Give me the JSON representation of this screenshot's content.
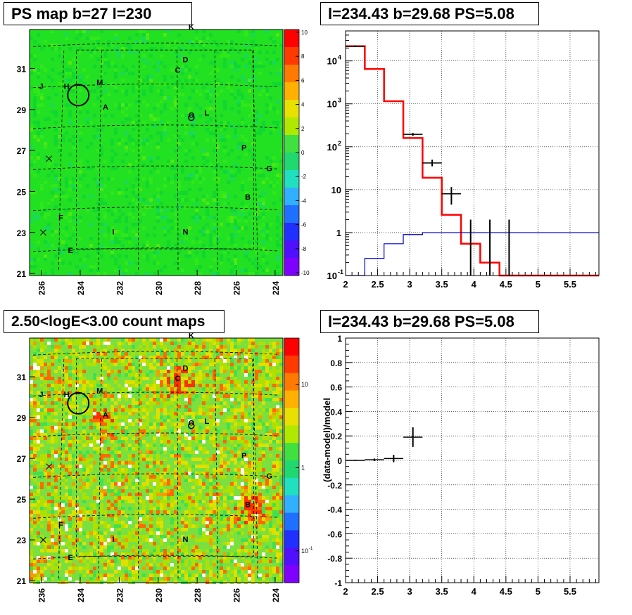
{
  "panels": {
    "ps_map": {
      "title": "PS map b=27 l=230",
      "xlabel": "",
      "ylabel": "",
      "x_ticks": [
        "236",
        "234",
        "232",
        "230",
        "228",
        "226",
        "224"
      ],
      "y_ticks": [
        "31",
        "29",
        "27",
        "25",
        "23",
        "21"
      ],
      "colorbar_ticks": [
        "10",
        "8",
        "6",
        "4",
        "2",
        "0",
        "-2",
        "-4",
        "-6",
        "-8",
        "-10"
      ],
      "colorbar_range": [
        -10,
        10
      ]
    },
    "spectrum": {
      "title": "l=234.43 b=29.68 PS=5.08",
      "x_ticks": [
        "2",
        "2.5",
        "3",
        "3.5",
        "4",
        "4.5",
        "5",
        "5.5"
      ],
      "y_ticks": [
        "10^-1",
        "1",
        "10",
        "10^2",
        "10^3",
        "10^4"
      ]
    },
    "count_map": {
      "title": "2.50<logE<3.00 count maps",
      "x_ticks": [
        "236",
        "234",
        "232",
        "230",
        "228",
        "226",
        "224"
      ],
      "y_ticks": [
        "31",
        "29",
        "27",
        "25",
        "23",
        "21"
      ],
      "colorbar_ticks": [
        "10",
        "1",
        "10^-1"
      ]
    },
    "residual": {
      "title": "l=234.43 b=29.68 PS=5.08",
      "ylabel": "(data-model)/model",
      "x_ticks": [
        "2",
        "2.5",
        "3",
        "3.5",
        "4",
        "4.5",
        "5",
        "5.5"
      ],
      "y_ticks": [
        "1",
        "0.8",
        "0.6",
        "0.4",
        "0.2",
        "0",
        "-0.2",
        "-0.4",
        "-0.6",
        "-0.8",
        "-1"
      ]
    }
  },
  "map_sources": {
    "letters": [
      "K",
      "D",
      "C",
      "J",
      "H",
      "M",
      "A",
      "O",
      "L",
      "P",
      "G",
      "B",
      "F",
      "I",
      "N",
      "E"
    ],
    "values": {
      "K": [
        228.3,
        32.9
      ],
      "D": [
        228.6,
        31.3
      ],
      "C": [
        229.0,
        30.8
      ],
      "J": [
        236.0,
        30.0
      ],
      "H": [
        234.7,
        30.0
      ],
      "M": [
        233.0,
        30.2
      ],
      "A": [
        232.7,
        29.0
      ],
      "O": [
        228.3,
        28.6
      ],
      "L": [
        227.5,
        28.7
      ],
      "P": [
        225.6,
        27.0
      ],
      "G": [
        224.3,
        26.0
      ],
      "B": [
        225.4,
        24.6
      ],
      "F": [
        235.0,
        23.6
      ],
      "I": [
        232.3,
        22.9
      ],
      "N": [
        228.6,
        22.9
      ],
      "E": [
        234.5,
        22.0
      ]
    },
    "circle_center": [
      234.1,
      29.7
    ],
    "crosses": [
      [
        235.6,
        26.6
      ],
      [
        235.9,
        23.0
      ]
    ],
    "count_hotspots": [
      [
        232.7,
        29.0
      ],
      [
        229.0,
        30.8
      ],
      [
        225.4,
        24.6
      ]
    ]
  },
  "chart_data": [
    {
      "type": "heatmap",
      "title": "PS map b=27 l=230",
      "xlim": [
        236.6,
        223.6
      ],
      "ylim": [
        20.9,
        32.9
      ],
      "zlim": [
        -10,
        10
      ],
      "note_values": "mostly near 0"
    },
    {
      "type": "line",
      "title": "l=234.43 b=29.68 PS=5.08",
      "xlim": [
        2,
        5.95
      ],
      "ylim": [
        0.1,
        50000
      ],
      "yscale": "log",
      "series": [
        {
          "color": "#ff0000",
          "bins": [
            2.0,
            2.3,
            2.6,
            2.9,
            3.2,
            3.5,
            3.8,
            4.1,
            4.4,
            4.7,
            5.0,
            5.95
          ],
          "values": [
            22000,
            6500,
            1150,
            160,
            19,
            2.6,
            0.55,
            0.2,
            0.1,
            0.1,
            0.1
          ]
        },
        {
          "color": "#0000cc",
          "bins": [
            2.0,
            2.3,
            2.6,
            2.9,
            3.2,
            3.5,
            3.8,
            4.1,
            4.4,
            4.7,
            5.0,
            5.95
          ],
          "values": [
            0.1,
            0.25,
            0.55,
            0.9,
            1.0,
            1.0,
            1.0,
            1.0,
            1.0,
            1.0,
            1.0
          ]
        }
      ],
      "points": [
        {
          "x": 2.15,
          "y": 22000,
          "ylo": 21000,
          "yhi": 23000,
          "xerr": 0.15
        },
        {
          "x": 3.05,
          "y": 195,
          "ylo": 180,
          "yhi": 210,
          "xerr": 0.15
        },
        {
          "x": 3.35,
          "y": 42,
          "ylo": 35,
          "yhi": 50,
          "xerr": 0.15
        },
        {
          "x": 3.65,
          "y": 8,
          "ylo": 4.5,
          "yhi": 11.5,
          "xerr": 0.15
        },
        {
          "x": 3.95,
          "y": 0.1,
          "ylo": 0.1,
          "yhi": 2,
          "xerr": 0
        },
        {
          "x": 4.25,
          "y": 0.1,
          "ylo": 0.1,
          "yhi": 2,
          "xerr": 0
        },
        {
          "x": 4.55,
          "y": 0.1,
          "ylo": 0.1,
          "yhi": 2,
          "xerr": 0
        }
      ]
    },
    {
      "type": "heatmap",
      "title": "2.50<logE<3.00 count maps",
      "xlim": [
        236.6,
        223.6
      ],
      "ylim": [
        20.9,
        32.9
      ],
      "zscale": "log"
    },
    {
      "type": "scatter",
      "title": "l=234.43 b=29.68 PS=5.08",
      "ylabel": "(data-model)/model",
      "xlim": [
        2,
        5.95
      ],
      "ylim": [
        -1,
        1
      ],
      "points": [
        {
          "x": 2.15,
          "y": 0.0,
          "xerr": 0.15,
          "yerr": 0.005
        },
        {
          "x": 2.45,
          "y": 0.005,
          "xerr": 0.15,
          "yerr": 0.01
        },
        {
          "x": 2.75,
          "y": 0.015,
          "xerr": 0.15,
          "yerr": 0.03
        },
        {
          "x": 3.05,
          "y": 0.19,
          "xerr": 0.15,
          "yerr": 0.08
        }
      ]
    }
  ],
  "colors": {
    "map_green": "#22e022",
    "model_red": "#ff0000",
    "blue_line": "#0000cc"
  }
}
